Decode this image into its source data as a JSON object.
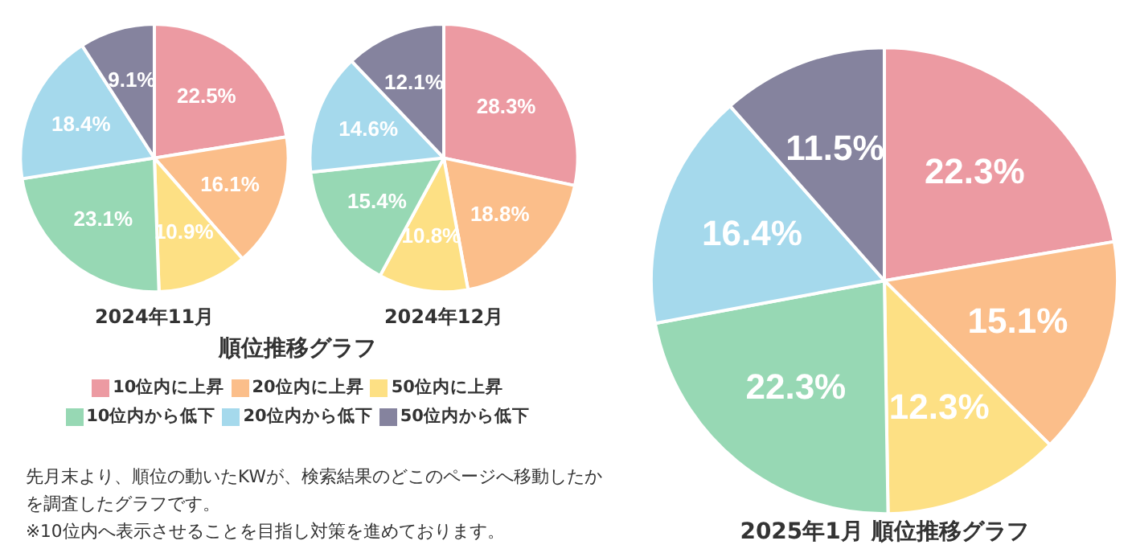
{
  "chart_data": [
    {
      "type": "pie",
      "title": "2024年11月",
      "legend": "bottom",
      "legend_title": "順位推移グラフ",
      "categories": [
        "10位内に上昇",
        "20位内に上昇",
        "50位内に上昇",
        "10位内から低下",
        "20位内から低下",
        "50位内から低下"
      ],
      "values": [
        22.5,
        16.1,
        10.9,
        23.1,
        18.4,
        9.1
      ],
      "value_labels": [
        "22.5%",
        "16.1%",
        "10.9%",
        "23.1%",
        "18.4%",
        "9.1%"
      ],
      "colors": [
        "#ec9aa2",
        "#fbbe8a",
        "#fde084",
        "#97d8b4",
        "#a5d9ec",
        "#85839e"
      ],
      "annotations": [
        "先月末より、順位の動いたKWが、検索結果のどこのページへ移動したかを調査したグラフです。",
        "※10位内へ表示させることを目指し対策を進めております。"
      ]
    },
    {
      "type": "pie",
      "title": "2024年12月",
      "categories": [
        null,
        null,
        null,
        null,
        null,
        null
      ],
      "values": [
        28.3,
        18.8,
        10.8,
        15.4,
        14.6,
        12.1
      ],
      "value_labels": [
        "28.3%",
        "18.8%",
        "10.8%",
        "15.4%",
        "14.6%",
        "12.1%"
      ],
      "colors": [
        "#ec9aa2",
        "#fbbe8a",
        "#fde084",
        "#97d8b4",
        "#a5d9ec",
        "#85839e"
      ]
    },
    {
      "type": "pie",
      "title": "2025年1月 順位推移グラフ",
      "categories": [
        null,
        null,
        null,
        null,
        null,
        null
      ],
      "values": [
        22.3,
        15.1,
        12.3,
        22.3,
        16.4,
        11.5
      ],
      "value_labels": [
        "22.3%",
        "15.1%",
        "12.3%",
        "22.3%",
        "16.4%",
        "11.5%"
      ],
      "colors": [
        "#ec9aa2",
        "#fbbe8a",
        "#fde084",
        "#97d8b4",
        "#a5d9ec",
        "#85839e"
      ]
    }
  ]
}
